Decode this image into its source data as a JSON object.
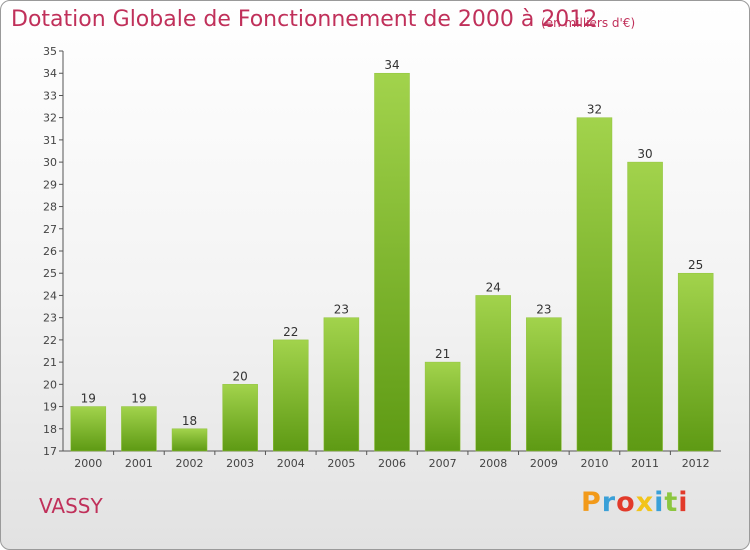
{
  "header": {
    "title": "Dotation Globale de Fonctionnement de 2000 à 2012",
    "subtitle": "(en milliers d'€)"
  },
  "footer": {
    "place": "VASSY",
    "logo_letters": [
      "P",
      "r",
      "o",
      "x",
      "i",
      "t",
      "i"
    ]
  },
  "colors": {
    "title": "#c0305a",
    "bar_top": "#a2d34c",
    "bar_bottom": "#5e9a14",
    "logo": [
      "#f29a1a",
      "#3aa0d8",
      "#e23a2a",
      "#f2c41a",
      "#3aa0d8",
      "#8cc63f",
      "#e23a2a"
    ]
  },
  "chart_data": {
    "type": "bar",
    "title": "Dotation Globale de Fonctionnement de 2000 à 2012",
    "subtitle": "(en milliers d'€)",
    "categories": [
      "2000",
      "2001",
      "2002",
      "2003",
      "2004",
      "2005",
      "2006",
      "2007",
      "2008",
      "2009",
      "2010",
      "2011",
      "2012"
    ],
    "values": [
      19,
      19,
      18,
      20,
      22,
      23,
      34,
      21,
      24,
      23,
      32,
      30,
      25
    ],
    "ylim": [
      17,
      35
    ],
    "yticks": [
      17,
      18,
      19,
      20,
      21,
      22,
      23,
      24,
      25,
      26,
      27,
      28,
      29,
      30,
      31,
      32,
      33,
      34,
      35
    ],
    "grid": false,
    "legend": "none"
  }
}
